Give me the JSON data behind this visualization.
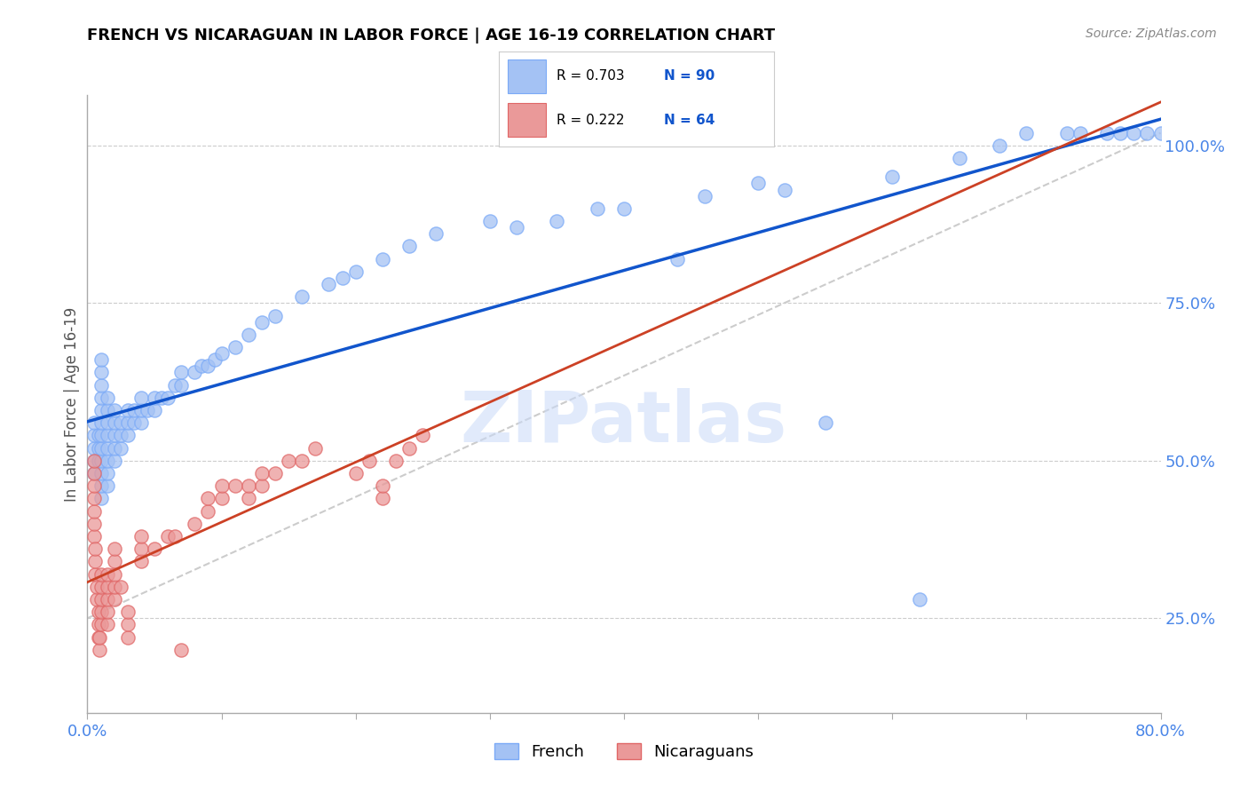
{
  "title": "FRENCH VS NICARAGUAN IN LABOR FORCE | AGE 16-19 CORRELATION CHART",
  "source": "Source: ZipAtlas.com",
  "ylabel": "In Labor Force | Age 16-19",
  "watermark": "ZIPatlas",
  "xlim": [
    0.0,
    0.8
  ],
  "ylim": [
    0.1,
    1.08
  ],
  "xticks": [
    0.0,
    0.1,
    0.2,
    0.3,
    0.4,
    0.5,
    0.6,
    0.7,
    0.8
  ],
  "xticklabels": [
    "0.0%",
    "",
    "",
    "",
    "",
    "",
    "",
    "",
    "80.0%"
  ],
  "yticks_right": [
    0.25,
    0.5,
    0.75,
    1.0
  ],
  "ytick_right_labels": [
    "25.0%",
    "50.0%",
    "75.0%",
    "100.0%"
  ],
  "french_R": 0.703,
  "french_N": 90,
  "nicaraguan_R": 0.222,
  "nicaraguan_N": 64,
  "french_color": "#a4c2f4",
  "nicaraguan_color": "#ea9999",
  "french_line_color": "#1155cc",
  "nicaraguan_line_color": "#cc4125",
  "diagonal_line_color": "#cccccc",
  "grid_color": "#cccccc",
  "title_color": "#000000",
  "axis_tick_color": "#4a86e8",
  "background_color": "#ffffff",
  "french_x": [
    0.005,
    0.005,
    0.005,
    0.005,
    0.005,
    0.008,
    0.008,
    0.008,
    0.01,
    0.01,
    0.01,
    0.01,
    0.01,
    0.01,
    0.01,
    0.01,
    0.01,
    0.01,
    0.01,
    0.01,
    0.015,
    0.015,
    0.015,
    0.015,
    0.015,
    0.015,
    0.015,
    0.015,
    0.02,
    0.02,
    0.02,
    0.02,
    0.02,
    0.025,
    0.025,
    0.025,
    0.03,
    0.03,
    0.03,
    0.035,
    0.035,
    0.04,
    0.04,
    0.04,
    0.045,
    0.05,
    0.05,
    0.055,
    0.06,
    0.065,
    0.07,
    0.07,
    0.08,
    0.085,
    0.09,
    0.095,
    0.1,
    0.11,
    0.12,
    0.13,
    0.14,
    0.16,
    0.18,
    0.19,
    0.2,
    0.22,
    0.24,
    0.26,
    0.3,
    0.32,
    0.35,
    0.38,
    0.4,
    0.44,
    0.46,
    0.5,
    0.52,
    0.55,
    0.6,
    0.62,
    0.65,
    0.68,
    0.7,
    0.73,
    0.74,
    0.76,
    0.77,
    0.78,
    0.79,
    0.8
  ],
  "french_y": [
    0.48,
    0.5,
    0.52,
    0.54,
    0.56,
    0.5,
    0.52,
    0.54,
    0.44,
    0.46,
    0.48,
    0.5,
    0.52,
    0.54,
    0.56,
    0.58,
    0.6,
    0.62,
    0.64,
    0.66,
    0.46,
    0.48,
    0.5,
    0.52,
    0.54,
    0.56,
    0.58,
    0.6,
    0.5,
    0.52,
    0.54,
    0.56,
    0.58,
    0.52,
    0.54,
    0.56,
    0.54,
    0.56,
    0.58,
    0.56,
    0.58,
    0.56,
    0.58,
    0.6,
    0.58,
    0.58,
    0.6,
    0.6,
    0.6,
    0.62,
    0.62,
    0.64,
    0.64,
    0.65,
    0.65,
    0.66,
    0.67,
    0.68,
    0.7,
    0.72,
    0.73,
    0.76,
    0.78,
    0.79,
    0.8,
    0.82,
    0.84,
    0.86,
    0.88,
    0.87,
    0.88,
    0.9,
    0.9,
    0.82,
    0.92,
    0.94,
    0.93,
    0.56,
    0.95,
    0.28,
    0.98,
    1.0,
    1.02,
    1.02,
    1.02,
    1.02,
    1.02,
    1.02,
    1.02,
    1.02
  ],
  "nicaraguan_x": [
    0.005,
    0.005,
    0.005,
    0.005,
    0.005,
    0.005,
    0.005,
    0.006,
    0.006,
    0.006,
    0.007,
    0.007,
    0.008,
    0.008,
    0.008,
    0.009,
    0.009,
    0.01,
    0.01,
    0.01,
    0.01,
    0.01,
    0.015,
    0.015,
    0.015,
    0.015,
    0.015,
    0.02,
    0.02,
    0.02,
    0.02,
    0.02,
    0.025,
    0.03,
    0.03,
    0.03,
    0.04,
    0.04,
    0.04,
    0.05,
    0.06,
    0.065,
    0.07,
    0.08,
    0.09,
    0.09,
    0.1,
    0.1,
    0.11,
    0.12,
    0.12,
    0.13,
    0.13,
    0.14,
    0.15,
    0.16,
    0.17,
    0.2,
    0.21,
    0.22,
    0.22,
    0.23,
    0.24,
    0.25
  ],
  "nicaraguan_y": [
    0.38,
    0.4,
    0.42,
    0.44,
    0.46,
    0.48,
    0.5,
    0.32,
    0.34,
    0.36,
    0.28,
    0.3,
    0.22,
    0.24,
    0.26,
    0.2,
    0.22,
    0.24,
    0.26,
    0.28,
    0.3,
    0.32,
    0.24,
    0.26,
    0.28,
    0.3,
    0.32,
    0.28,
    0.3,
    0.32,
    0.34,
    0.36,
    0.3,
    0.22,
    0.24,
    0.26,
    0.34,
    0.36,
    0.38,
    0.36,
    0.38,
    0.38,
    0.2,
    0.4,
    0.42,
    0.44,
    0.44,
    0.46,
    0.46,
    0.44,
    0.46,
    0.46,
    0.48,
    0.48,
    0.5,
    0.5,
    0.52,
    0.48,
    0.5,
    0.44,
    0.46,
    0.5,
    0.52,
    0.54
  ]
}
